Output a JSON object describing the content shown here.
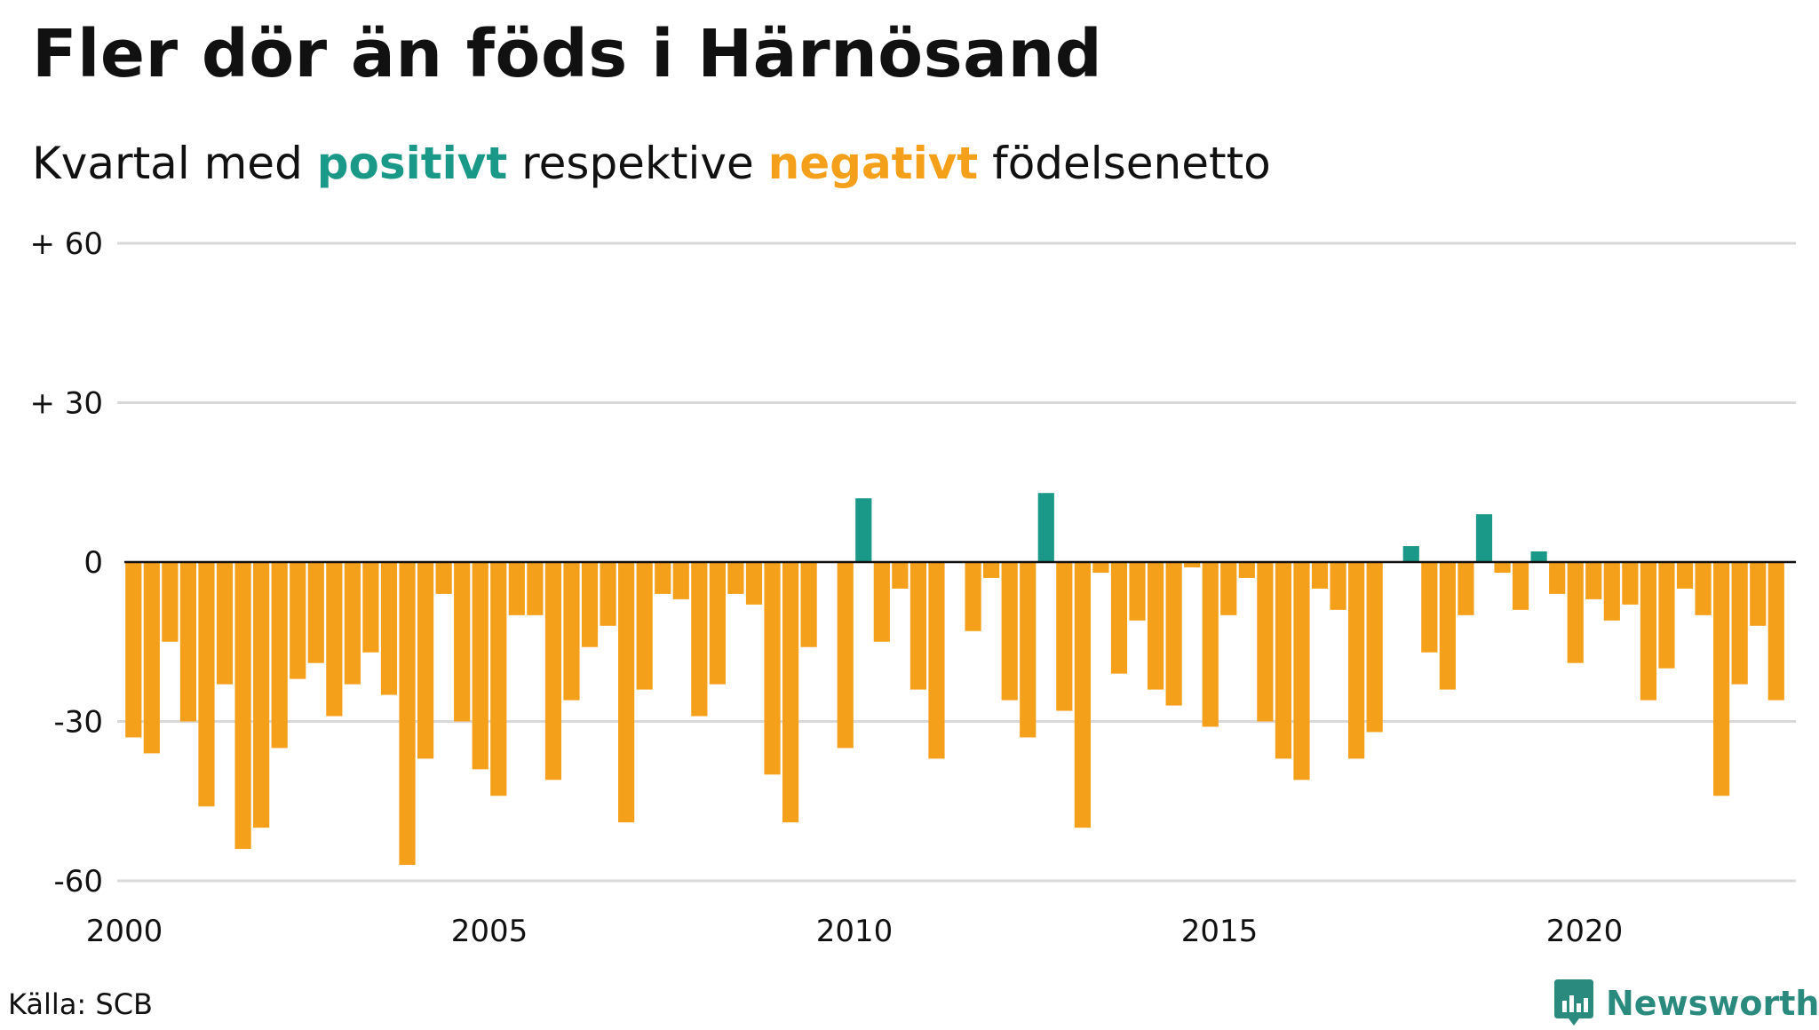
{
  "title": "Fler dör än föds i Härnösand",
  "subtitle": {
    "pre": "Kvartal med ",
    "positive_word": "positivt",
    "mid": " respektive ",
    "negative_word": "negativt",
    "post": " födelsenetto"
  },
  "colors": {
    "positive": "#1b9988",
    "negative": "#f5a01b",
    "grid": "#d9d9d9",
    "zero_line": "#111111",
    "logo": "#2a8a7e"
  },
  "source": "Källa: SCB",
  "logo": {
    "text": "Newsworthy",
    "icon": "newsworthy-logo-icon"
  },
  "chart_data": {
    "type": "bar",
    "xlabel": "",
    "ylabel": "",
    "ylim": [
      -60,
      60
    ],
    "y_ticks": [
      {
        "value": 60,
        "label": "+ 60"
      },
      {
        "value": 30,
        "label": "+ 30"
      },
      {
        "value": 0,
        "label": "0"
      },
      {
        "value": -30,
        "label": "-30"
      },
      {
        "value": -60,
        "label": "-60"
      }
    ],
    "x_ticks": [
      {
        "value": 2000,
        "label": "2000"
      },
      {
        "value": 2005,
        "label": "2005"
      },
      {
        "value": 2010,
        "label": "2010"
      },
      {
        "value": 2015,
        "label": "2015"
      },
      {
        "value": 2020,
        "label": "2020"
      }
    ],
    "grid": true,
    "x_start": "2000 Q1",
    "values": [
      -33,
      -36,
      -15,
      -30,
      -46,
      -23,
      -54,
      -50,
      -35,
      -22,
      -19,
      -29,
      -23,
      -17,
      -25,
      -57,
      -37,
      -6,
      -30,
      -39,
      -44,
      -10,
      -10,
      -41,
      -26,
      -16,
      -12,
      -49,
      -24,
      -6,
      -7,
      -29,
      -23,
      -6,
      -8,
      -40,
      -49,
      -16,
      0,
      -35,
      12,
      -15,
      -5,
      -24,
      -37,
      0,
      -13,
      -3,
      -26,
      -33,
      13,
      -28,
      -50,
      -2,
      -21,
      -11,
      -24,
      -27,
      -1,
      -31,
      -10,
      -3,
      -30,
      -37,
      -41,
      -5,
      -9,
      -37,
      -32,
      0,
      3,
      -17,
      -24,
      -10,
      9,
      -2,
      -9,
      2,
      -6,
      -19,
      -7,
      -11,
      -8,
      -26,
      -20,
      -5,
      -10,
      -44,
      -23,
      -12,
      -26
    ]
  }
}
